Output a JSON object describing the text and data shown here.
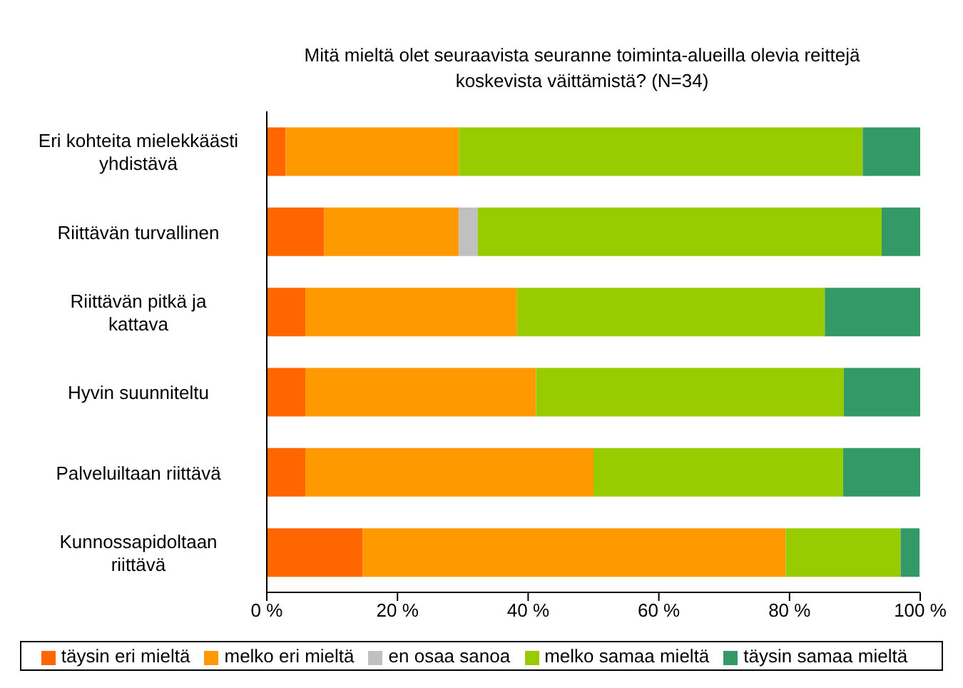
{
  "chart_data": {
    "type": "bar",
    "orientation": "horizontal",
    "stacked": true,
    "title": "Mitä mieltä olet seuraavista seuranne toiminta-alueilla olevia reittejä koskevista väittämistä? (N=34)",
    "categories": [
      "Eri kohteita mielekkäästi yhdistävä",
      "Riittävän turvallinen",
      "Riittävän pitkä ja kattava",
      "Hyvin suunniteltu",
      "Palveluiltaan riittävä",
      "Kunnossapidoltaan riittävä"
    ],
    "series": [
      {
        "name": "täysin eri mieltä",
        "color": "#ff6600",
        "values": [
          2.9,
          8.8,
          5.9,
          5.9,
          5.9,
          14.7
        ]
      },
      {
        "name": "melko eri mieltä",
        "color": "#ff9900",
        "values": [
          26.5,
          20.6,
          32.4,
          35.3,
          44.1,
          64.7
        ]
      },
      {
        "name": "en osaa sanoa",
        "color": "#c0c0c0",
        "values": [
          0,
          2.9,
          0,
          0,
          0,
          0
        ]
      },
      {
        "name": "melko samaa mieltä",
        "color": "#99cc00",
        "values": [
          61.8,
          61.8,
          47.1,
          47.1,
          38.2,
          17.6
        ]
      },
      {
        "name": "täysin samaa mieltä",
        "color": "#339966",
        "values": [
          8.8,
          5.9,
          14.7,
          11.8,
          11.8,
          2.9
        ]
      }
    ],
    "xlim": [
      0,
      100
    ],
    "xticks": [
      {
        "value": 0,
        "label": "0 %"
      },
      {
        "value": 20,
        "label": "20 %"
      },
      {
        "value": 40,
        "label": "40 %"
      },
      {
        "value": 60,
        "label": "60 %"
      },
      {
        "value": 80,
        "label": "80 %"
      },
      {
        "value": 100,
        "label": "100 %"
      }
    ],
    "legend": "bottom"
  }
}
